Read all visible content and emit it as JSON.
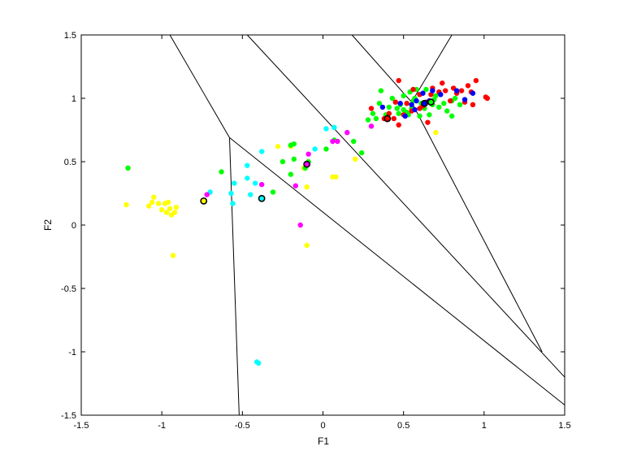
{
  "chart_data": {
    "type": "scatter",
    "title": "",
    "xlabel": "F1",
    "ylabel": "F2",
    "xlim": [
      -1.5,
      1.5
    ],
    "ylim": [
      -1.5,
      1.5
    ],
    "xticks": [
      -1.5,
      -1,
      -0.5,
      0,
      0.5,
      1,
      1.5
    ],
    "yticks": [
      -1.5,
      -1,
      -0.5,
      0,
      0.5,
      1,
      1.5
    ],
    "xtick_labels": [
      "-1.5",
      "-1",
      "-0.5",
      "0",
      "0.5",
      "1",
      "1.5"
    ],
    "ytick_labels": [
      "-1.5",
      "-1",
      "-0.5",
      "0",
      "0.5",
      "1",
      "1.5"
    ],
    "grid": false,
    "legend": "none",
    "series": [
      {
        "color": "#ffff00",
        "points": [
          [
            -1.22,
            0.16
          ],
          [
            -1.08,
            0.15
          ],
          [
            -1.06,
            0.18
          ],
          [
            -1.05,
            0.22
          ],
          [
            -1.02,
            0.17
          ],
          [
            -1.0,
            0.12
          ],
          [
            -0.98,
            0.17
          ],
          [
            -0.97,
            0.1
          ],
          [
            -0.96,
            0.18
          ],
          [
            -0.95,
            0.13
          ],
          [
            -0.94,
            0.08
          ],
          [
            -0.92,
            0.1
          ],
          [
            -0.91,
            0.14
          ],
          [
            -0.93,
            -0.24
          ],
          [
            -0.28,
            0.62
          ],
          [
            -0.2,
            0.62
          ],
          [
            -0.12,
            0.45
          ],
          [
            -0.1,
            0.3
          ],
          [
            -0.1,
            -0.16
          ],
          [
            0.06,
            0.38
          ],
          [
            0.08,
            0.38
          ],
          [
            0.2,
            0.52
          ],
          [
            0.7,
            0.73
          ]
        ]
      },
      {
        "color": "#00ff00",
        "points": [
          [
            -1.21,
            0.45
          ],
          [
            -0.63,
            0.42
          ],
          [
            -0.31,
            0.26
          ],
          [
            -0.25,
            0.5
          ],
          [
            -0.2,
            0.4
          ],
          [
            -0.18,
            0.52
          ],
          [
            -0.2,
            0.63
          ],
          [
            -0.18,
            0.64
          ],
          [
            -0.11,
            0.45
          ],
          [
            -0.09,
            0.5
          ],
          [
            0.02,
            0.6
          ],
          [
            0.07,
            0.67
          ],
          [
            0.19,
            0.66
          ],
          [
            0.24,
            0.57
          ],
          [
            0.28,
            0.83
          ],
          [
            0.31,
            0.88
          ],
          [
            0.33,
            0.84
          ],
          [
            0.35,
            0.96
          ],
          [
            0.36,
            1.06
          ],
          [
            0.39,
            0.87
          ],
          [
            0.41,
            0.93
          ],
          [
            0.43,
            1.0
          ],
          [
            0.45,
            0.97
          ],
          [
            0.46,
            0.92
          ],
          [
            0.47,
            0.88
          ],
          [
            0.48,
            0.95
          ],
          [
            0.5,
            0.91
          ],
          [
            0.5,
            1.02
          ],
          [
            0.52,
            0.89
          ],
          [
            0.52,
            0.96
          ],
          [
            0.53,
            0.87
          ],
          [
            0.54,
            1.05
          ],
          [
            0.55,
            0.92
          ],
          [
            0.56,
            0.98
          ],
          [
            0.57,
            1.0
          ],
          [
            0.58,
            1.07
          ],
          [
            0.6,
            0.86
          ],
          [
            0.61,
            0.96
          ],
          [
            0.63,
            0.92
          ],
          [
            0.64,
            1.07
          ],
          [
            0.66,
            0.87
          ],
          [
            0.68,
            0.95
          ],
          [
            0.69,
            0.99
          ],
          [
            0.7,
            1.02
          ],
          [
            0.72,
            0.93
          ],
          [
            0.75,
            0.96
          ],
          [
            0.77,
            0.9
          ],
          [
            0.8,
            0.98
          ],
          [
            0.8,
            0.86
          ],
          [
            0.82,
            1.0
          ],
          [
            0.85,
            0.95
          ]
        ]
      },
      {
        "color": "#00ffff",
        "points": [
          [
            -0.7,
            0.26
          ],
          [
            -0.57,
            0.25
          ],
          [
            -0.55,
            0.33
          ],
          [
            -0.56,
            0.17
          ],
          [
            -0.47,
            0.47
          ],
          [
            -0.47,
            0.37
          ],
          [
            -0.45,
            0.24
          ],
          [
            -0.42,
            0.33
          ],
          [
            -0.38,
            0.58
          ],
          [
            -0.41,
            -1.08
          ],
          [
            -0.4,
            -1.09
          ],
          [
            0.02,
            0.76
          ],
          [
            0.07,
            0.77
          ],
          [
            -0.05,
            0.6
          ]
        ]
      },
      {
        "color": "#ff00ff",
        "points": [
          [
            -0.72,
            0.24
          ],
          [
            -0.38,
            0.32
          ],
          [
            -0.17,
            0.31
          ],
          [
            -0.14,
            0.0
          ],
          [
            -0.09,
            0.56
          ],
          [
            0.06,
            0.66
          ],
          [
            0.09,
            0.66
          ],
          [
            0.15,
            0.73
          ],
          [
            0.3,
            0.78
          ]
        ]
      },
      {
        "color": "#ff0000",
        "points": [
          [
            0.3,
            0.92
          ],
          [
            0.38,
            0.84
          ],
          [
            0.41,
            0.88
          ],
          [
            0.44,
            0.84
          ],
          [
            0.45,
            0.97
          ],
          [
            0.47,
            1.14
          ],
          [
            0.47,
            0.79
          ],
          [
            0.5,
            0.87
          ],
          [
            0.52,
            0.96
          ],
          [
            0.55,
            0.9
          ],
          [
            0.56,
            1.07
          ],
          [
            0.6,
            1.03
          ],
          [
            0.6,
            0.92
          ],
          [
            0.62,
            0.94
          ],
          [
            0.64,
            0.97
          ],
          [
            0.65,
            0.81
          ],
          [
            0.67,
            1.03
          ],
          [
            0.68,
            1.08
          ],
          [
            0.72,
            1.05
          ],
          [
            0.74,
            1.12
          ],
          [
            0.76,
            1.06
          ],
          [
            0.79,
            0.98
          ],
          [
            0.81,
            1.08
          ],
          [
            0.83,
            1.04
          ],
          [
            0.86,
            1.06
          ],
          [
            0.88,
            0.97
          ],
          [
            0.9,
            1.1
          ],
          [
            0.92,
            1.05
          ],
          [
            0.93,
            0.95
          ],
          [
            0.95,
            1.14
          ],
          [
            1.01,
            1.01
          ],
          [
            1.02,
            1.0
          ]
        ]
      },
      {
        "color": "#0000ff",
        "points": [
          [
            0.37,
            0.93
          ],
          [
            0.48,
            0.96
          ],
          [
            0.51,
            0.86
          ],
          [
            0.55,
            0.95
          ],
          [
            0.57,
            0.91
          ],
          [
            0.58,
            0.98
          ],
          [
            0.62,
            1.04
          ],
          [
            0.66,
            0.98
          ],
          [
            0.68,
            1.06
          ],
          [
            0.73,
            1.03
          ],
          [
            0.83,
            1.06
          ],
          [
            0.88,
            0.99
          ],
          [
            0.93,
            1.04
          ]
        ]
      }
    ],
    "centroids": [
      {
        "fill": "#ffff00",
        "x": -0.74,
        "y": 0.19
      },
      {
        "fill": "#00ffff",
        "x": -0.38,
        "y": 0.21
      },
      {
        "fill": "#ff00ff",
        "x": -0.1,
        "y": 0.48
      },
      {
        "fill": "#ff0000",
        "x": 0.4,
        "y": 0.84
      },
      {
        "fill": "#0000ff",
        "x": 0.63,
        "y": 0.96
      },
      {
        "fill": "#00ff00",
        "x": 0.67,
        "y": 0.97
      }
    ],
    "boundaries": [
      [
        [
          -0.95,
          1.5
        ],
        [
          -0.58,
          0.69
        ]
      ],
      [
        [
          -0.58,
          0.69
        ],
        [
          -0.52,
          -1.5
        ]
      ],
      [
        [
          -0.58,
          0.69
        ],
        [
          1.5,
          -1.42
        ]
      ],
      [
        [
          -0.47,
          1.5
        ],
        [
          1.5,
          -1.2
        ]
      ],
      [
        [
          0.18,
          1.5
        ],
        [
          0.55,
          0.97
        ]
      ],
      [
        [
          0.55,
          0.97
        ],
        [
          1.36,
          -1.0
        ]
      ],
      [
        [
          0.55,
          0.97
        ],
        [
          0.8,
          1.5
        ]
      ]
    ]
  }
}
